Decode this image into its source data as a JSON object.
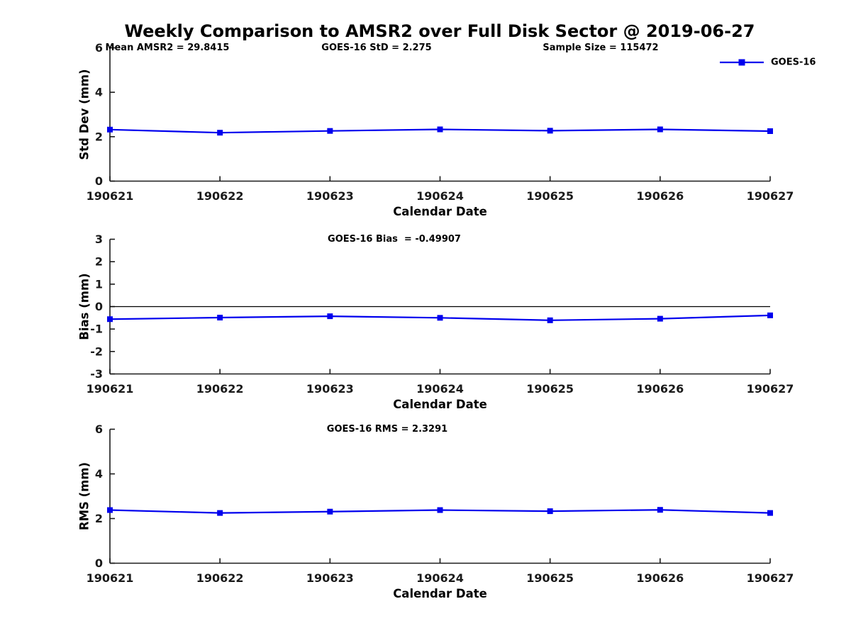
{
  "title": "Weekly Comparison to AMSR2 over Full Disk Sector @ 2019-06-27",
  "colors": {
    "series": "#0000EE",
    "axis": "#1a1a1a",
    "text": "#000000",
    "zero_line": "#000000"
  },
  "chart_data": {
    "type": "line",
    "x_categories": [
      "190621",
      "190622",
      "190623",
      "190624",
      "190625",
      "190626",
      "190627"
    ],
    "xlabel": "Calendar Date",
    "grid": false,
    "legend": {
      "label": "GOES-16",
      "position": "top-right"
    },
    "charts": [
      {
        "name": "std-dev",
        "ylabel": "Std Dev (mm)",
        "ylim": [
          0,
          6
        ],
        "yticks": [
          0,
          2,
          4,
          6
        ],
        "annotations": [
          "Mean AMSR2 = 29.8415",
          "GOES-16 StD = 2.275",
          "Sample Size = 115472"
        ],
        "show_legend": true,
        "zero_line": false,
        "series": [
          {
            "name": "GOES-16",
            "values": [
              2.32,
              2.18,
              2.26,
              2.33,
              2.27,
              2.33,
              2.25
            ]
          }
        ]
      },
      {
        "name": "bias",
        "ylabel": "Bias (mm)",
        "ylim": [
          -3,
          3
        ],
        "yticks": [
          3,
          2,
          1,
          0,
          -1,
          -2,
          -3
        ],
        "annotations": [
          "GOES-16 Bias  = -0.49907"
        ],
        "show_legend": false,
        "zero_line": true,
        "series": [
          {
            "name": "GOES-16",
            "values": [
              -0.56,
              -0.49,
              -0.43,
              -0.5,
              -0.61,
              -0.54,
              -0.39
            ]
          }
        ]
      },
      {
        "name": "rms",
        "ylabel": "RMS (mm)",
        "ylim": [
          0,
          6
        ],
        "yticks": [
          0,
          2,
          4,
          6
        ],
        "annotations": [
          "GOES-16 RMS = 2.3291"
        ],
        "show_legend": false,
        "zero_line": false,
        "series": [
          {
            "name": "GOES-16",
            "values": [
              2.38,
              2.25,
              2.31,
              2.38,
              2.33,
              2.39,
              2.25
            ]
          }
        ]
      }
    ]
  }
}
